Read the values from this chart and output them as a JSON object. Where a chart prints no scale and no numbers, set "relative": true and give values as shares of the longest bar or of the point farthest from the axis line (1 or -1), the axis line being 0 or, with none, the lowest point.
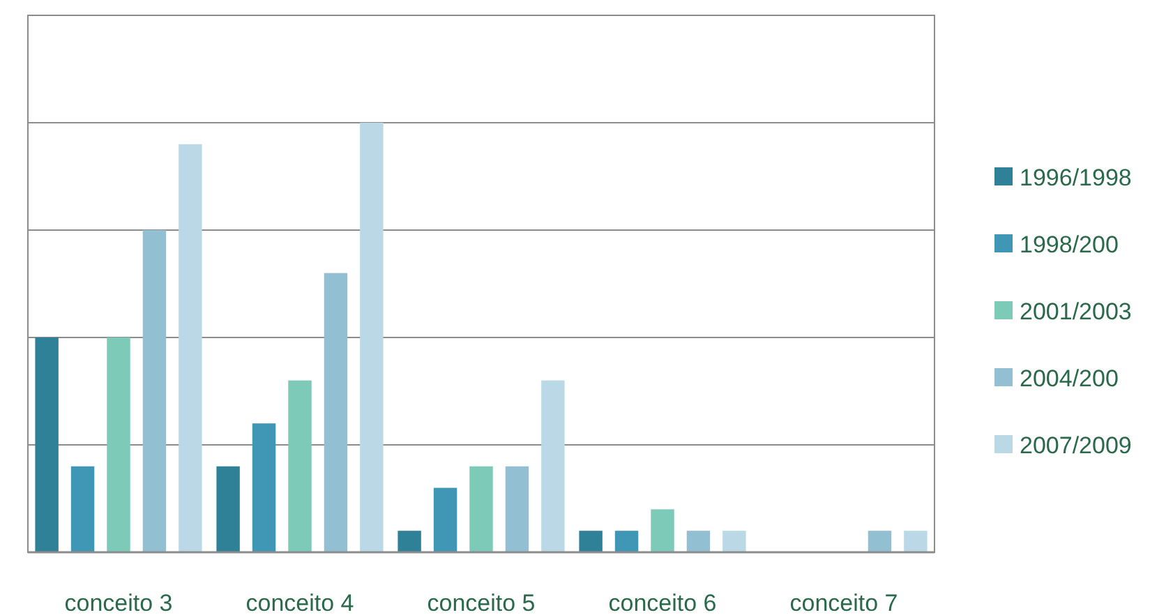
{
  "chart_data": {
    "type": "bar",
    "relative": true,
    "grid": "y",
    "legend": "right",
    "categories": [
      "conceito 3",
      "conceito 4",
      "conceito 5",
      "conceito 6",
      "conceito 7"
    ],
    "series": [
      {
        "name": "1996/1998",
        "color": "#2e8196",
        "values": [
          0.5,
          0.2,
          0.05,
          0.05,
          0
        ]
      },
      {
        "name": "1998/200",
        "color": "#3f97b5",
        "values": [
          0.2,
          0.3,
          0.15,
          0.05,
          0
        ]
      },
      {
        "name": "2001/2003",
        "color": "#7ecab9",
        "values": [
          0.5,
          0.4,
          0.2,
          0.1,
          0
        ]
      },
      {
        "name": "2004/200",
        "color": "#93bfd3",
        "values": [
          0.75,
          0.65,
          0.2,
          0.05,
          0.05
        ]
      },
      {
        "name": "2007/2009",
        "color": "#bad8e5",
        "values": [
          0.95,
          1,
          0.4,
          0.05,
          0.05
        ]
      }
    ]
  }
}
